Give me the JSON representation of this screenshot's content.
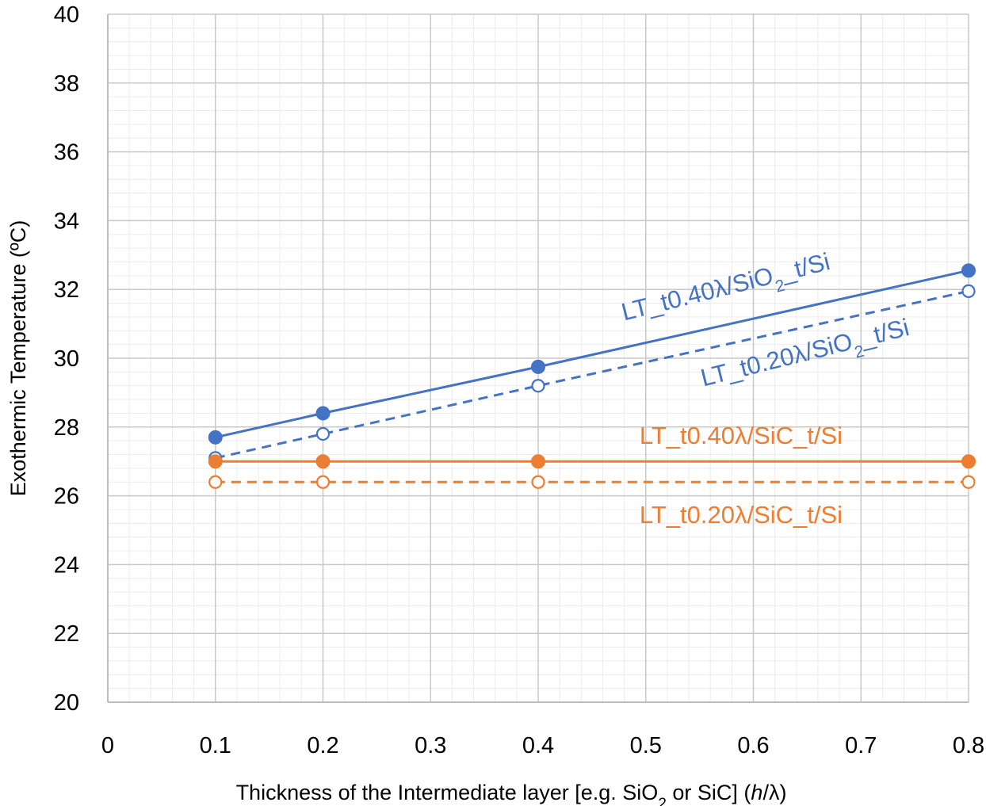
{
  "chart_data": {
    "type": "line",
    "title": "",
    "xlabel": "Thickness of the Intermediate layer [e.g. SiO2 or SiC] (h/λ)",
    "xlabel_parts": {
      "before": "Thickness of the Intermediate layer [e.g. SiO",
      "sub": "2",
      "middle": " or SiC] (",
      "italic": "h",
      "after": "/λ)"
    },
    "ylabel": "Exothermic Temperature (ºC)",
    "xlim": [
      0,
      0.8
    ],
    "ylim": [
      20,
      40
    ],
    "x_ticks": [
      "0",
      "0.1",
      "0.2",
      "0.3",
      "0.4",
      "0.5",
      "0.6",
      "0.7",
      "0.8"
    ],
    "y_ticks": [
      "20",
      "22",
      "24",
      "26",
      "28",
      "30",
      "32",
      "34",
      "36",
      "38",
      "40"
    ],
    "grid": true,
    "minor_grid": true,
    "legend": "inline labels",
    "series": [
      {
        "name": "LT_t0.40λ/SiO2_t/Si",
        "label_parts": {
          "before": "LT_t0.40λ/SiO",
          "sub": "2",
          "after": "_t/Si"
        },
        "color": "#4472c4",
        "line_style": "solid",
        "marker": "filled-circle",
        "x": [
          0.1,
          0.2,
          0.4,
          0.8
        ],
        "values": [
          27.7,
          28.4,
          29.75,
          32.55
        ]
      },
      {
        "name": "LT_t0.20λ/SiO2_t/Si",
        "label_parts": {
          "before": "LT_t0.20λ/SiO",
          "sub": "2",
          "after": "_t/Si"
        },
        "color": "#4472c4",
        "line_style": "dashed",
        "marker": "open-circle",
        "x": [
          0.1,
          0.2,
          0.4,
          0.8
        ],
        "values": [
          27.1,
          27.8,
          29.2,
          31.95
        ]
      },
      {
        "name": "LT_t0.40λ/SiC_t/Si",
        "label_parts": {
          "before": "LT_t0.40λ/SiC_t/Si",
          "sub": "",
          "after": ""
        },
        "color": "#ed7d31",
        "line_style": "solid",
        "marker": "filled-circle",
        "x": [
          0.1,
          0.2,
          0.4,
          0.8
        ],
        "values": [
          27.0,
          27.0,
          27.0,
          27.0
        ]
      },
      {
        "name": "LT_t0.20λ/SiC_t/Si",
        "label_parts": {
          "before": "LT_t0.20λ/SiC_t/Si",
          "sub": "",
          "after": ""
        },
        "color": "#ed7d31",
        "line_style": "dashed",
        "marker": "open-circle",
        "x": [
          0.1,
          0.2,
          0.4,
          0.8
        ],
        "values": [
          26.4,
          26.4,
          26.4,
          26.4
        ]
      }
    ]
  }
}
